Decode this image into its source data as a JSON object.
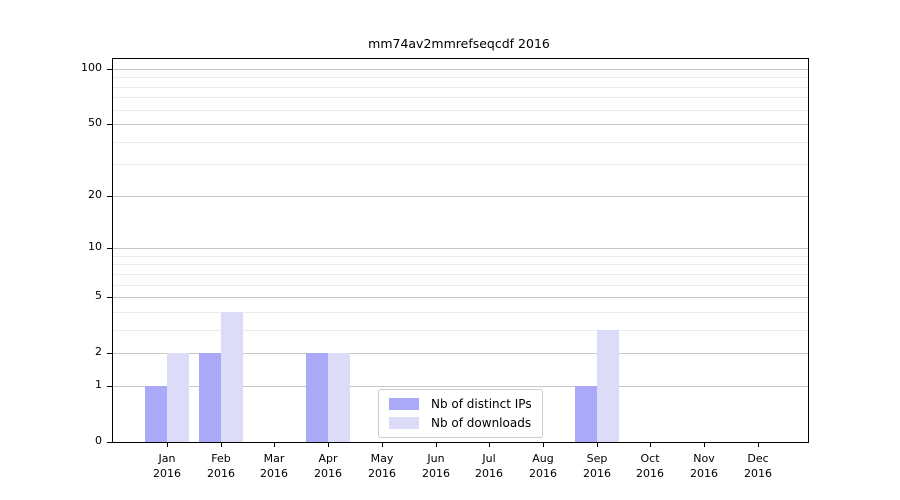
{
  "chart_data": {
    "type": "bar",
    "title": "mm74av2mmrefseqcdf 2016",
    "categories": [
      "Jan",
      "Feb",
      "Mar",
      "Apr",
      "May",
      "Jun",
      "Jul",
      "Aug",
      "Sep",
      "Oct",
      "Nov",
      "Dec"
    ],
    "x_year_label": "2016",
    "series": [
      {
        "name": "Nb of distinct IPs",
        "color": "#a9a9f8",
        "values": [
          1,
          2,
          0,
          2,
          0,
          0,
          0,
          0,
          1,
          0,
          0,
          0
        ]
      },
      {
        "name": "Nb of downloads",
        "color": "#dcdcf8",
        "values": [
          2,
          4,
          0,
          2,
          0,
          0,
          0,
          0,
          3,
          0,
          0,
          0
        ]
      }
    ],
    "yscale": "log1p",
    "ylim": [
      0,
      100
    ],
    "yticks": [
      0,
      1,
      2,
      5,
      10,
      20,
      50,
      100
    ],
    "minor_gridlines": [
      3,
      4,
      6,
      7,
      8,
      9,
      30,
      40,
      60,
      70,
      80,
      90
    ],
    "grid": true,
    "legend_position": "bottom-center",
    "colors": {
      "grid_major": "#c6c6c6",
      "grid_minor": "#ebebeb",
      "axis": "#000000",
      "background": "#ffffff"
    }
  }
}
